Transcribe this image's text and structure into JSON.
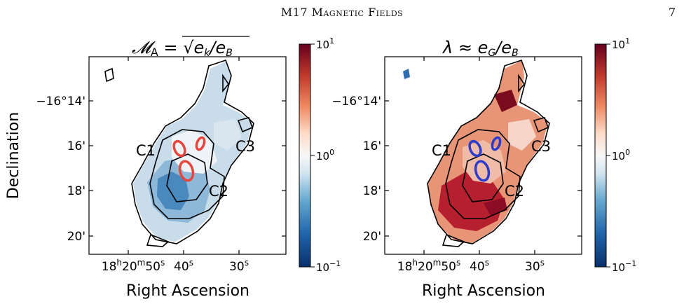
{
  "header": {
    "running_title": "M17 Magnetic Fields",
    "page_number": "7"
  },
  "figure": {
    "y_axis_label": "Declination",
    "y_ticks": [
      "−16°14'",
      "16'",
      "18'",
      "20'"
    ],
    "x_ticks": [
      "18h20m50s",
      "40s",
      "30s"
    ],
    "panels": [
      {
        "title": "M_A = sqrt(e_k/e_B)",
        "x_axis_label": "Right Ascension",
        "region_labels": [
          "C1",
          "C2",
          "C3"
        ],
        "highlight_color": "#e8453c",
        "colorbar_ticks": [
          "10^1",
          "10^0",
          "10^-1"
        ]
      },
      {
        "title": "λ ≈ e_G/e_B",
        "x_axis_label": "Right Ascension",
        "region_labels": [
          "C1",
          "C2",
          "C3"
        ],
        "highlight_color": "#2a3ccf",
        "colorbar_ticks": [
          "10^1",
          "10^0",
          "10^-1"
        ]
      }
    ],
    "colormap": "RdBu_r",
    "colorbar_scale": "log"
  }
}
